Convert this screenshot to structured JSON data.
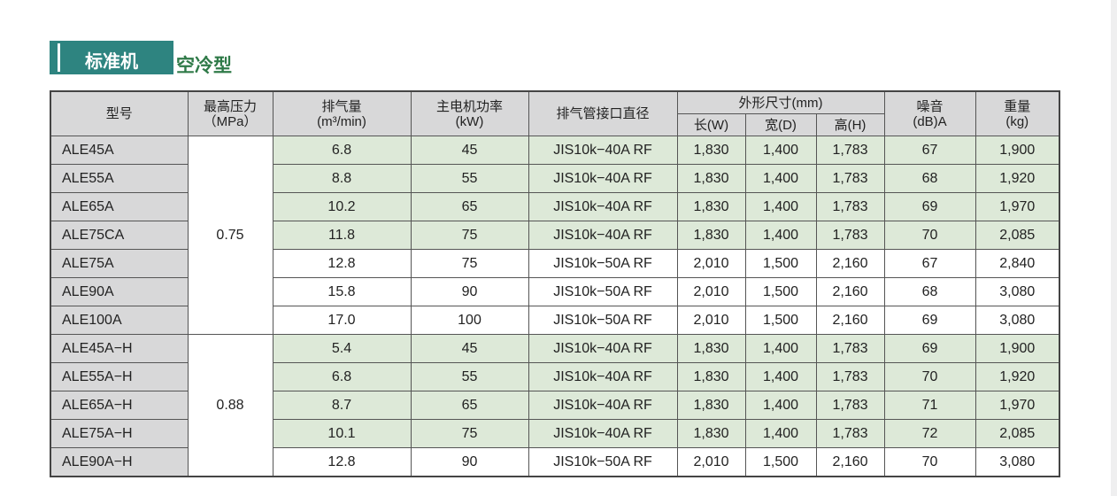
{
  "title": {
    "badge": "标准机",
    "subtitle": "空冷型"
  },
  "colors": {
    "badge": "#2e8480",
    "subtitle": "#2f7a48",
    "highlight_row": "#dde9d8",
    "header": "#d8d8d9"
  },
  "headers": {
    "model": "型号",
    "pressure": "最高压力",
    "pressure_unit": "（MPa）",
    "flow": "排气量",
    "flow_unit": "(m³/min)",
    "power": "主电机功率",
    "power_unit": "(kW)",
    "pipe": "排气管接口直径",
    "dims": "外形尺寸(mm)",
    "w": "长(W)",
    "d": "宽(D)",
    "h": "高(H)",
    "noise": "噪音",
    "noise_unit": "(dB)A",
    "weight": "重量",
    "weight_unit": "(kg)"
  },
  "groups": [
    {
      "pressure": "0.75",
      "rows": 7
    },
    {
      "pressure": "0.88",
      "rows": 5
    }
  ],
  "rows": [
    {
      "model": "ALE45A",
      "flow": "6.8",
      "power": "45",
      "pipe": "JIS10k−40A RF",
      "w": "1,830",
      "d": "1,400",
      "h": "1,783",
      "noise": "67",
      "weight": "1,900",
      "highlight": true
    },
    {
      "model": "ALE55A",
      "flow": "8.8",
      "power": "55",
      "pipe": "JIS10k−40A RF",
      "w": "1,830",
      "d": "1,400",
      "h": "1,783",
      "noise": "68",
      "weight": "1,920",
      "highlight": true
    },
    {
      "model": "ALE65A",
      "flow": "10.2",
      "power": "65",
      "pipe": "JIS10k−40A RF",
      "w": "1,830",
      "d": "1,400",
      "h": "1,783",
      "noise": "69",
      "weight": "1,970",
      "highlight": true
    },
    {
      "model": "ALE75CA",
      "flow": "11.8",
      "power": "75",
      "pipe": "JIS10k−40A RF",
      "w": "1,830",
      "d": "1,400",
      "h": "1,783",
      "noise": "70",
      "weight": "2,085",
      "highlight": true
    },
    {
      "model": "ALE75A",
      "flow": "12.8",
      "power": "75",
      "pipe": "JIS10k−50A RF",
      "w": "2,010",
      "d": "1,500",
      "h": "2,160",
      "noise": "67",
      "weight": "2,840",
      "highlight": false
    },
    {
      "model": "ALE90A",
      "flow": "15.8",
      "power": "90",
      "pipe": "JIS10k−50A RF",
      "w": "2,010",
      "d": "1,500",
      "h": "2,160",
      "noise": "68",
      "weight": "3,080",
      "highlight": false
    },
    {
      "model": "ALE100A",
      "flow": "17.0",
      "power": "100",
      "pipe": "JIS10k−50A RF",
      "w": "2,010",
      "d": "1,500",
      "h": "2,160",
      "noise": "69",
      "weight": "3,080",
      "highlight": false
    },
    {
      "model": "ALE45A−H",
      "flow": "5.4",
      "power": "45",
      "pipe": "JIS10k−40A RF",
      "w": "1,830",
      "d": "1,400",
      "h": "1,783",
      "noise": "69",
      "weight": "1,900",
      "highlight": true
    },
    {
      "model": "ALE55A−H",
      "flow": "6.8",
      "power": "55",
      "pipe": "JIS10k−40A RF",
      "w": "1,830",
      "d": "1,400",
      "h": "1,783",
      "noise": "70",
      "weight": "1,920",
      "highlight": true
    },
    {
      "model": "ALE65A−H",
      "flow": "8.7",
      "power": "65",
      "pipe": "JIS10k−40A RF",
      "w": "1,830",
      "d": "1,400",
      "h": "1,783",
      "noise": "71",
      "weight": "1,970",
      "highlight": true
    },
    {
      "model": "ALE75A−H",
      "flow": "10.1",
      "power": "75",
      "pipe": "JIS10k−40A RF",
      "w": "1,830",
      "d": "1,400",
      "h": "1,783",
      "noise": "72",
      "weight": "2,085",
      "highlight": true
    },
    {
      "model": "ALE90A−H",
      "flow": "12.8",
      "power": "90",
      "pipe": "JIS10k−50A RF",
      "w": "2,010",
      "d": "1,500",
      "h": "2,160",
      "noise": "70",
      "weight": "3,080",
      "highlight": false
    }
  ]
}
